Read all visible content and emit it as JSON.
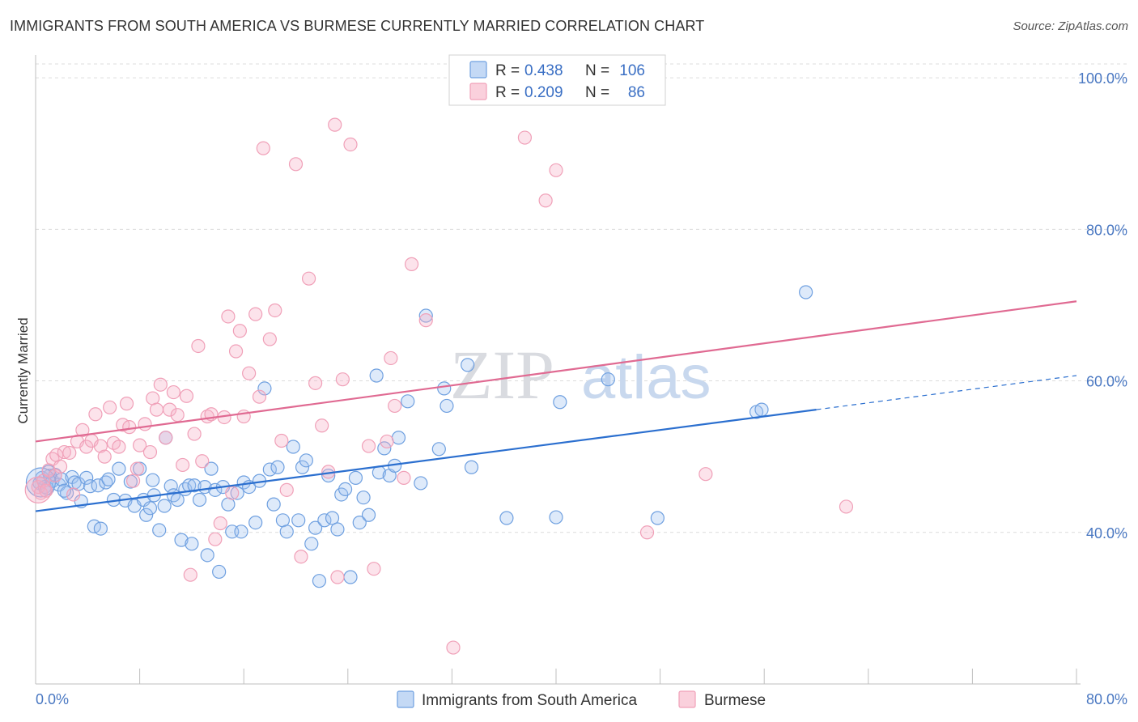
{
  "header": {
    "title": "IMMIGRANTS FROM SOUTH AMERICA VS BURMESE CURRENTLY MARRIED CORRELATION CHART",
    "source": "Source: ZipAtlas.com"
  },
  "watermark": {
    "zip": "ZIP",
    "atlas": "atlas"
  },
  "legend": {
    "r_label": "R =",
    "n_label": "N =",
    "entries": [
      {
        "r": "0.438",
        "n": "106",
        "color": "#6fa0e0"
      },
      {
        "r": "0.209",
        "n": "86",
        "color": "#f0a0b8"
      }
    ]
  },
  "bottom_legend": {
    "items": [
      {
        "label": "Immigrants from South America",
        "color": "#6fa0e0"
      },
      {
        "label": "Burmese",
        "color": "#f0a0b8"
      }
    ]
  },
  "chart_data": {
    "type": "scatter",
    "title": "IMMIGRANTS FROM SOUTH AMERICA VS BURMESE CURRENTLY MARRIED CORRELATION CHART",
    "xlabel": "",
    "ylabel": "Currently Married",
    "xlim": [
      0,
      80
    ],
    "ylim": [
      20,
      103
    ],
    "x_tick_labels": [
      "0.0%",
      "80.0%"
    ],
    "y_ticks": [
      40,
      60,
      80,
      100
    ],
    "y_tick_labels": [
      "40.0%",
      "60.0%",
      "80.0%",
      "100.0%"
    ],
    "grid": true,
    "legend_position": "top-center",
    "series": [
      {
        "name": "Immigrants from South America",
        "color": "#6fa0e0",
        "line_color": "#2b6fcf",
        "trend": {
          "x0": 0,
          "y0": 42.8,
          "x1": 60,
          "y1": 56.2,
          "dash_to_x": 80,
          "dash_to_y": 60.7
        },
        "points": [
          [
            0.3,
            46.5
          ],
          [
            0.5,
            47.2
          ],
          [
            0.7,
            46.0
          ],
          [
            0.9,
            45.8
          ],
          [
            1.1,
            47.5
          ],
          [
            1.3,
            46.8
          ],
          [
            1.5,
            47.6
          ],
          [
            1.8,
            46.3
          ],
          [
            2.0,
            47.0
          ],
          [
            2.4,
            45.2
          ],
          [
            2.8,
            47.3
          ],
          [
            3.0,
            46.6
          ],
          [
            3.3,
            46.4
          ],
          [
            3.5,
            44.1
          ],
          [
            3.9,
            47.2
          ],
          [
            4.2,
            46.1
          ],
          [
            4.5,
            40.8
          ],
          [
            4.8,
            46.2
          ],
          [
            5.0,
            40.5
          ],
          [
            5.4,
            46.6
          ],
          [
            6.0,
            44.3
          ],
          [
            6.4,
            48.4
          ],
          [
            6.9,
            44.2
          ],
          [
            7.3,
            46.7
          ],
          [
            7.6,
            43.5
          ],
          [
            8.0,
            48.4
          ],
          [
            8.3,
            44.3
          ],
          [
            8.5,
            42.3
          ],
          [
            8.8,
            43.2
          ],
          [
            9.1,
            44.9
          ],
          [
            9.5,
            40.3
          ],
          [
            9.9,
            43.5
          ],
          [
            10.0,
            52.5
          ],
          [
            10.4,
            46.1
          ],
          [
            10.6,
            44.9
          ],
          [
            10.9,
            44.3
          ],
          [
            11.2,
            39.0
          ],
          [
            11.5,
            45.7
          ],
          [
            11.8,
            46.2
          ],
          [
            12.0,
            38.5
          ],
          [
            12.2,
            46.2
          ],
          [
            12.6,
            44.3
          ],
          [
            13.0,
            46.0
          ],
          [
            13.2,
            37.0
          ],
          [
            13.5,
            48.4
          ],
          [
            13.8,
            45.6
          ],
          [
            14.1,
            34.8
          ],
          [
            14.4,
            46.0
          ],
          [
            14.8,
            43.7
          ],
          [
            15.1,
            40.1
          ],
          [
            15.5,
            45.2
          ],
          [
            15.8,
            40.1
          ],
          [
            16.0,
            46.6
          ],
          [
            16.4,
            46.0
          ],
          [
            16.9,
            41.3
          ],
          [
            17.2,
            46.8
          ],
          [
            17.6,
            59.0
          ],
          [
            18.0,
            48.3
          ],
          [
            18.3,
            43.7
          ],
          [
            18.6,
            48.6
          ],
          [
            19.0,
            41.6
          ],
          [
            19.3,
            40.1
          ],
          [
            19.8,
            51.3
          ],
          [
            20.2,
            41.6
          ],
          [
            20.5,
            48.6
          ],
          [
            20.8,
            49.5
          ],
          [
            21.2,
            38.5
          ],
          [
            21.5,
            40.6
          ],
          [
            21.8,
            33.6
          ],
          [
            22.2,
            41.6
          ],
          [
            22.5,
            47.5
          ],
          [
            22.8,
            41.9
          ],
          [
            23.2,
            40.4
          ],
          [
            23.5,
            45.0
          ],
          [
            23.8,
            45.7
          ],
          [
            24.2,
            34.1
          ],
          [
            24.6,
            47.2
          ],
          [
            24.9,
            41.3
          ],
          [
            25.2,
            44.6
          ],
          [
            25.6,
            42.3
          ],
          [
            26.2,
            60.7
          ],
          [
            26.4,
            47.9
          ],
          [
            26.8,
            51.1
          ],
          [
            27.2,
            47.5
          ],
          [
            27.6,
            48.8
          ],
          [
            27.9,
            52.5
          ],
          [
            28.6,
            57.3
          ],
          [
            29.6,
            46.5
          ],
          [
            30.0,
            68.6
          ],
          [
            31.0,
            51.0
          ],
          [
            31.4,
            59.0
          ],
          [
            31.6,
            56.7
          ],
          [
            33.2,
            62.1
          ],
          [
            33.5,
            48.6
          ],
          [
            36.2,
            41.9
          ],
          [
            40.0,
            42.0
          ],
          [
            40.3,
            57.2
          ],
          [
            44.0,
            60.2
          ],
          [
            47.8,
            41.9
          ],
          [
            55.4,
            55.9
          ],
          [
            55.8,
            56.2
          ],
          [
            59.2,
            71.7
          ],
          [
            1.0,
            48.0
          ],
          [
            2.2,
            45.5
          ],
          [
            5.6,
            47.0
          ],
          [
            9.0,
            46.9
          ]
        ]
      },
      {
        "name": "Burmese",
        "color": "#f0a0b8",
        "line_color": "#e06a92",
        "trend": {
          "x0": 0,
          "y0": 52.0,
          "x1": 80,
          "y1": 70.5
        },
        "points": [
          [
            0.2,
            46.0
          ],
          [
            0.4,
            45.2
          ],
          [
            0.6,
            46.8
          ],
          [
            0.8,
            45.5
          ],
          [
            1.0,
            48.2
          ],
          [
            1.3,
            49.7
          ],
          [
            1.6,
            50.2
          ],
          [
            1.9,
            48.7
          ],
          [
            2.2,
            50.6
          ],
          [
            2.6,
            50.5
          ],
          [
            2.9,
            45.0
          ],
          [
            3.2,
            52.0
          ],
          [
            3.6,
            53.5
          ],
          [
            3.9,
            51.3
          ],
          [
            4.3,
            52.1
          ],
          [
            4.6,
            55.6
          ],
          [
            5.0,
            51.4
          ],
          [
            5.3,
            50.0
          ],
          [
            5.7,
            56.5
          ],
          [
            6.0,
            51.8
          ],
          [
            6.4,
            51.3
          ],
          [
            6.7,
            54.2
          ],
          [
            7.0,
            57.0
          ],
          [
            7.2,
            53.9
          ],
          [
            7.5,
            46.8
          ],
          [
            7.8,
            48.4
          ],
          [
            8.0,
            51.5
          ],
          [
            8.4,
            54.3
          ],
          [
            8.8,
            50.6
          ],
          [
            9.0,
            57.7
          ],
          [
            9.3,
            56.2
          ],
          [
            9.6,
            59.5
          ],
          [
            10.0,
            52.5
          ],
          [
            10.3,
            56.2
          ],
          [
            10.6,
            58.5
          ],
          [
            10.9,
            55.5
          ],
          [
            11.3,
            48.9
          ],
          [
            11.6,
            58.0
          ],
          [
            11.9,
            34.4
          ],
          [
            12.2,
            53.0
          ],
          [
            12.5,
            64.6
          ],
          [
            12.8,
            49.4
          ],
          [
            13.2,
            55.3
          ],
          [
            13.5,
            55.6
          ],
          [
            13.8,
            39.1
          ],
          [
            14.2,
            41.2
          ],
          [
            14.5,
            55.2
          ],
          [
            14.8,
            68.5
          ],
          [
            15.1,
            45.2
          ],
          [
            15.4,
            63.9
          ],
          [
            15.7,
            66.6
          ],
          [
            16.0,
            55.3
          ],
          [
            16.4,
            61.0
          ],
          [
            16.9,
            68.8
          ],
          [
            17.2,
            57.9
          ],
          [
            17.5,
            90.7
          ],
          [
            18.0,
            65.5
          ],
          [
            18.4,
            69.3
          ],
          [
            18.9,
            52.1
          ],
          [
            19.3,
            45.6
          ],
          [
            20.0,
            88.6
          ],
          [
            20.4,
            36.8
          ],
          [
            21.0,
            73.5
          ],
          [
            21.5,
            59.7
          ],
          [
            22.0,
            54.1
          ],
          [
            22.5,
            48.0
          ],
          [
            23.2,
            34.1
          ],
          [
            23.6,
            60.2
          ],
          [
            24.2,
            91.2
          ],
          [
            25.6,
            51.4
          ],
          [
            26.0,
            35.2
          ],
          [
            27.3,
            63.0
          ],
          [
            27.6,
            56.7
          ],
          [
            28.3,
            47.2
          ],
          [
            28.9,
            75.4
          ],
          [
            30.0,
            68.0
          ],
          [
            32.1,
            24.8
          ],
          [
            37.6,
            92.1
          ],
          [
            39.2,
            83.8
          ],
          [
            40.0,
            87.8
          ],
          [
            47.0,
            40.0
          ],
          [
            51.5,
            47.7
          ],
          [
            62.3,
            43.4
          ],
          [
            23.0,
            93.8
          ],
          [
            27.0,
            52.0
          ],
          [
            1.5,
            47.5
          ]
        ]
      }
    ]
  }
}
